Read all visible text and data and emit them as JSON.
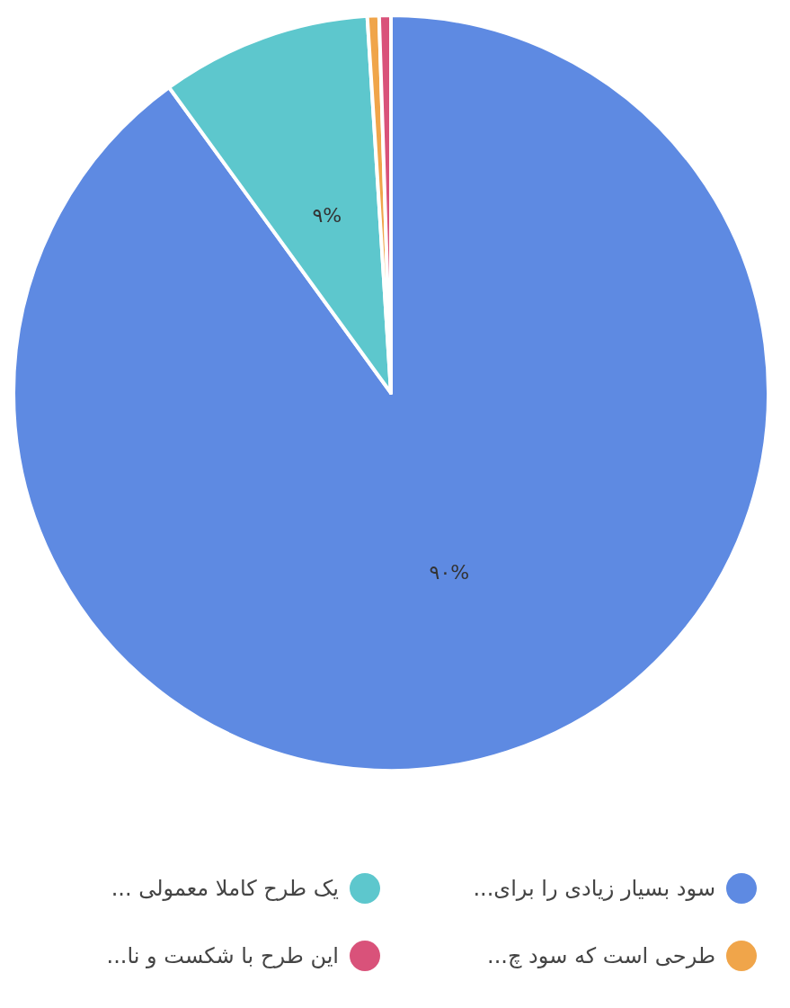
{
  "chart_data": {
    "type": "pie",
    "categories": [
      "سود بسیار زیادی را برای...",
      "یک طرح کاملا معمولی ...",
      "طرحی است که سود چ...",
      "این طرح با شکست و نا..."
    ],
    "values": [
      90,
      9,
      0.5,
      0.5
    ],
    "colors": [
      "#5e8ae2",
      "#5dc7cd",
      "#f0a54a",
      "#d9527a"
    ],
    "value_labels": [
      "۹۰%",
      "۹%",
      null,
      null
    ],
    "legend": "bottom"
  }
}
